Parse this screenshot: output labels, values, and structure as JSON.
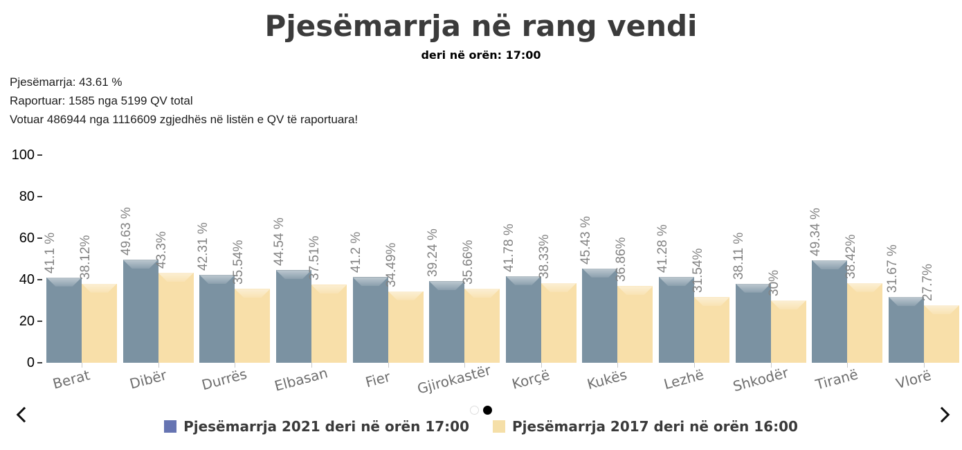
{
  "title": "Pjesëmarrja në rang vendi",
  "subtitle": "deri në orën: 17:00",
  "summary": {
    "line1": "Pjesëmarrja: 43.61 %",
    "line2": "Raportuar: 1585 nga 5199 QV total",
    "line3": "Votuar 486944 nga 1116609 zgjedhës në listën e QV të raportuara!"
  },
  "chart_data": {
    "type": "bar",
    "title": "Pjesëmarrja në rang vendi",
    "categories": [
      "Berat",
      "Dibër",
      "Durrës",
      "Elbasan",
      "Fier",
      "Gjirokastër",
      "Korçë",
      "Kukës",
      "Lezhë",
      "Shkodër",
      "Tiranë",
      "Vlorë"
    ],
    "series": [
      {
        "name": "Pjesëmarrja 2021 deri në orën 17:00",
        "values": [
          41.1,
          49.63,
          42.31,
          44.54,
          41.2,
          39.24,
          41.78,
          45.43,
          41.28,
          38.11,
          49.34,
          31.67
        ],
        "labels": [
          "41.1 %",
          "49.63 %",
          "42.31 %",
          "44.54 %",
          "41.2 %",
          "39.24 %",
          "41.78 %",
          "45.43 %",
          "41.28 %",
          "38.11 %",
          "49.34 %",
          "31.67 %"
        ],
        "bar_color": "#7b92a2",
        "legend_color": "#6674b2"
      },
      {
        "name": "Pjesëmarrja 2017 deri në orën 16:00",
        "values": [
          38.12,
          43.3,
          35.54,
          37.51,
          34.49,
          35.66,
          38.33,
          36.86,
          31.54,
          30,
          38.42,
          27.7
        ],
        "labels": [
          "38.12%",
          "43.3%",
          "35.54%",
          "37.51%",
          "34.49%",
          "35.66%",
          "38.33%",
          "36.86%",
          "31.54%",
          "30%",
          "38.42%",
          "27.7%"
        ],
        "bar_color": "#f8dfa9",
        "legend_color": "#f5dfa8"
      }
    ],
    "ylim": [
      0,
      100
    ],
    "yticks": [
      0,
      20,
      40,
      60,
      80,
      100
    ],
    "grid": false,
    "legend_position": "bottom",
    "value_label_color": "#828282",
    "category_label_color": "#6e6e6e"
  },
  "nav": {
    "prev_icon": "chevron-left",
    "next_icon": "chevron-right"
  },
  "pagination": {
    "dots": [
      {
        "state": "inactive"
      },
      {
        "state": "active"
      }
    ]
  }
}
